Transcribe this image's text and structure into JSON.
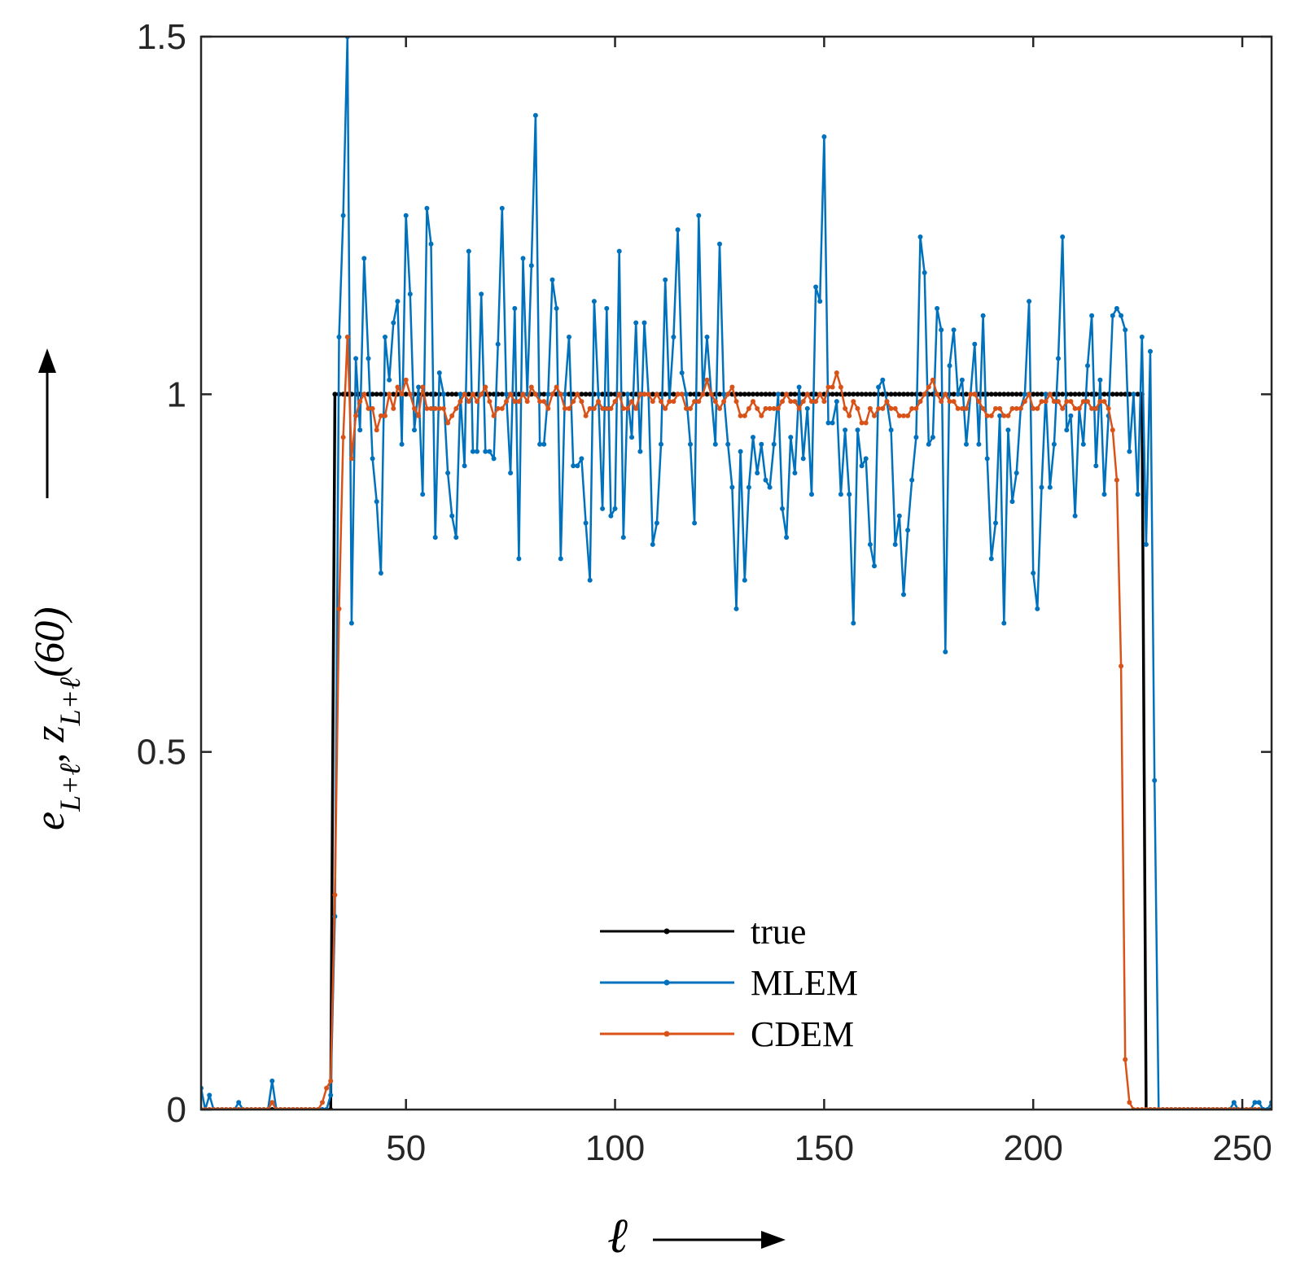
{
  "chart_data": {
    "type": "line",
    "xlabel": "ℓ",
    "ylabel": "e_{L+ℓ}, z_{L+ℓ}(60)",
    "xlim": [
      1,
      257
    ],
    "ylim": [
      0,
      1.5
    ],
    "xticks": [
      50,
      100,
      150,
      200,
      250
    ],
    "xtick_labels": [
      "50",
      "100",
      "150",
      "200",
      "250"
    ],
    "yticks": [
      0,
      0.5,
      1,
      1.5
    ],
    "ytick_labels": [
      "0",
      "0.5",
      "1",
      "1.5"
    ],
    "legend_position": "lower-center",
    "grid": false,
    "colors": {
      "true": "#000000",
      "MLEM": "#0072BD",
      "CDEM": "#D95319",
      "axes": "#262626"
    },
    "series": [
      {
        "name": "true",
        "x_start": 1,
        "values": [
          0,
          0,
          0,
          0,
          0,
          0,
          0,
          0,
          0,
          0,
          0,
          0,
          0,
          0,
          0,
          0,
          0,
          0,
          0,
          0,
          0,
          0,
          0,
          0,
          0,
          0,
          0,
          0,
          0,
          0,
          0,
          0,
          1,
          1,
          1,
          1,
          1,
          1,
          1,
          1,
          1,
          1,
          1,
          1,
          1,
          1,
          1,
          1,
          1,
          1,
          1,
          1,
          1,
          1,
          1,
          1,
          1,
          1,
          1,
          1,
          1,
          1,
          1,
          1,
          1,
          1,
          1,
          1,
          1,
          1,
          1,
          1,
          1,
          1,
          1,
          1,
          1,
          1,
          1,
          1,
          1,
          1,
          1,
          1,
          1,
          1,
          1,
          1,
          1,
          1,
          1,
          1,
          1,
          1,
          1,
          1,
          1,
          1,
          1,
          1,
          1,
          1,
          1,
          1,
          1,
          1,
          1,
          1,
          1,
          1,
          1,
          1,
          1,
          1,
          1,
          1,
          1,
          1,
          1,
          1,
          1,
          1,
          1,
          1,
          1,
          1,
          1,
          1,
          1,
          1,
          1,
          1,
          1,
          1,
          1,
          1,
          1,
          1,
          1,
          1,
          1,
          1,
          1,
          1,
          1,
          1,
          1,
          1,
          1,
          1,
          1,
          1,
          1,
          1,
          1,
          1,
          1,
          1,
          1,
          1,
          1,
          1,
          1,
          1,
          1,
          1,
          1,
          1,
          1,
          1,
          1,
          1,
          1,
          1,
          1,
          1,
          1,
          1,
          1,
          1,
          1,
          1,
          1,
          1,
          1,
          1,
          1,
          1,
          1,
          1,
          1,
          1,
          1,
          1,
          1,
          1,
          1,
          1,
          1,
          1,
          1,
          1,
          1,
          1,
          1,
          1,
          1,
          1,
          1,
          1,
          1,
          1,
          1,
          1,
          1,
          1,
          1,
          1,
          1,
          1,
          1,
          1,
          1,
          1,
          1,
          1,
          0,
          0,
          0,
          0,
          0,
          0,
          0,
          0,
          0,
          0,
          0,
          0,
          0,
          0,
          0,
          0,
          0,
          0,
          0,
          0,
          0,
          0,
          0,
          0,
          0,
          0,
          0,
          0,
          0,
          0,
          0,
          0,
          0
        ]
      },
      {
        "name": "MLEM",
        "x_start": 1,
        "values": [
          0.03,
          0,
          0.02,
          0,
          0,
          0,
          0,
          0,
          0,
          0.01,
          0,
          0,
          0,
          0,
          0,
          0,
          0,
          0.04,
          0,
          0,
          0,
          0,
          0,
          0,
          0,
          0,
          0,
          0,
          0,
          0,
          0,
          0.02,
          0.27,
          1.08,
          1.25,
          1.5,
          0.68,
          1.05,
          0.95,
          1.19,
          1.05,
          0.91,
          0.85,
          0.75,
          1.08,
          1.02,
          1.1,
          1.13,
          0.93,
          1.25,
          1.14,
          0.95,
          1.01,
          0.86,
          1.26,
          1.21,
          0.8,
          1.03,
          1.0,
          0.89,
          0.83,
          0.8,
          1.0,
          0.9,
          1.2,
          0.92,
          0.92,
          1.14,
          0.92,
          0.92,
          0.91,
          1.07,
          1.26,
          1.0,
          0.89,
          1.12,
          0.77,
          1.19,
          1.0,
          1.18,
          1.39,
          0.93,
          0.93,
          1.0,
          1.16,
          1.12,
          0.77,
          1.0,
          1.08,
          0.9,
          0.9,
          0.91,
          0.82,
          0.74,
          1.13,
          1.0,
          0.84,
          1.12,
          0.83,
          0.84,
          1.2,
          0.8,
          1.0,
          0.94,
          1.1,
          0.92,
          1.1,
          1.0,
          0.79,
          0.82,
          0.93,
          1.16,
          0.99,
          1.08,
          1.23,
          1.03,
          1.0,
          0.93,
          0.82,
          1.25,
          1.0,
          1.08,
          1.0,
          0.93,
          1.21,
          1.0,
          0.93,
          0.87,
          0.7,
          0.92,
          0.74,
          0.87,
          0.94,
          0.89,
          0.93,
          0.88,
          0.87,
          0.93,
          1.0,
          0.84,
          0.8,
          0.94,
          0.89,
          1.01,
          0.91,
          0.98,
          0.86,
          1.15,
          1.13,
          1.36,
          0.96,
          0.96,
          0.99,
          0.86,
          0.95,
          0.86,
          0.68,
          0.95,
          0.9,
          0.91,
          0.79,
          0.76,
          1.01,
          1.02,
          0.99,
          0.95,
          0.79,
          0.83,
          0.72,
          0.81,
          0.88,
          0.94,
          1.22,
          1.17,
          0.93,
          0.94,
          1.12,
          1.09,
          0.64,
          1.04,
          1.09,
          1.0,
          1.02,
          0.93,
          1.0,
          1.07,
          0.93,
          1.11,
          0.91,
          0.77,
          0.82,
          0.97,
          0.68,
          0.95,
          0.85,
          0.89,
          0.98,
          1.0,
          1.13,
          0.75,
          0.7,
          0.87,
          1.0,
          0.87,
          0.93,
          1.05,
          1.22,
          0.95,
          0.97,
          0.83,
          0.98,
          0.93,
          1.04,
          1.11,
          0.9,
          1.02,
          0.86,
          0.97,
          1.11,
          1.12,
          1.11,
          1.09,
          0.92,
          1.0,
          0.86,
          1.08,
          0.79,
          1.06,
          0.46,
          0,
          0,
          0,
          0,
          0,
          0,
          0,
          0,
          0,
          0,
          0,
          0,
          0,
          0,
          0,
          0,
          0,
          0,
          0.01,
          0,
          0,
          0,
          0,
          0.01,
          0.01,
          0,
          0,
          0.01,
          0.03,
          0,
          0,
          0,
          0,
          0.02,
          0,
          0
        ]
      },
      {
        "name": "CDEM",
        "x_start": 1,
        "values": [
          0,
          0,
          0,
          0,
          0,
          0,
          0,
          0,
          0,
          0,
          0,
          0,
          0,
          0,
          0,
          0,
          0,
          0.01,
          0,
          0,
          0,
          0,
          0,
          0,
          0,
          0,
          0,
          0,
          0,
          0.01,
          0.03,
          0.04,
          0.3,
          0.7,
          0.94,
          1.08,
          0.91,
          0.97,
          0.99,
          1.0,
          0.98,
          0.98,
          0.95,
          0.97,
          0.97,
          1.0,
          0.98,
          1.01,
          1.0,
          1.02,
          1.0,
          0.98,
          0.97,
          1.01,
          0.98,
          0.98,
          0.98,
          0.98,
          0.98,
          0.96,
          0.97,
          0.98,
          0.99,
          1.0,
          0.99,
          1.0,
          0.99,
          1.0,
          1.01,
          0.99,
          0.97,
          0.98,
          0.98,
          0.99,
          1.0,
          0.99,
          0.99,
          1.0,
          0.99,
          1.01,
          1.0,
          0.99,
          0.99,
          0.98,
          1.0,
          1.01,
          1.0,
          0.98,
          0.98,
          0.99,
          1.0,
          0.99,
          0.97,
          0.98,
          0.98,
          0.99,
          0.98,
          0.98,
          0.98,
          0.99,
          1.0,
          0.98,
          0.98,
          0.99,
          0.98,
          1.0,
          1.0,
          1.0,
          0.99,
          1.0,
          0.99,
          0.98,
          0.99,
          0.99,
          1.0,
          1.0,
          0.98,
          0.98,
          0.99,
          0.99,
          1.0,
          1.02,
          1.0,
          0.99,
          0.98,
          0.99,
          1.0,
          1.01,
          0.99,
          0.97,
          0.97,
          0.98,
          0.99,
          0.98,
          0.97,
          0.98,
          0.98,
          0.98,
          0.98,
          0.99,
          1.0,
          0.99,
          0.99,
          0.98,
          0.99,
          1.0,
          0.99,
          0.99,
          1.0,
          0.99,
          1.01,
          1.01,
          1.03,
          1.01,
          0.98,
          0.97,
          0.99,
          0.98,
          0.96,
          0.96,
          0.98,
          0.97,
          0.98,
          0.98,
          0.99,
          0.98,
          0.98,
          0.97,
          0.97,
          0.97,
          0.98,
          0.98,
          0.99,
          1.0,
          1.01,
          1.02,
          1.0,
          0.99,
          1.0,
          0.99,
          0.99,
          0.98,
          0.98,
          0.98,
          1.0,
          1.0,
          0.99,
          0.98,
          0.97,
          0.97,
          0.98,
          0.98,
          0.97,
          0.97,
          0.98,
          0.98,
          0.98,
          0.99,
          1.0,
          0.98,
          0.98,
          0.99,
          0.99,
          1.0,
          0.99,
          0.99,
          0.98,
          0.99,
          0.99,
          0.98,
          0.98,
          0.99,
          0.99,
          0.98,
          0.98,
          0.99,
          0.99,
          0.98,
          0.95,
          0.88,
          0.62,
          0.07,
          0.01,
          0,
          0,
          0,
          0,
          0,
          0,
          0,
          0,
          0,
          0,
          0,
          0,
          0,
          0,
          0,
          0,
          0,
          0,
          0,
          0,
          0,
          0,
          0,
          0,
          0,
          0,
          0,
          0,
          0,
          0,
          0
        ]
      }
    ]
  }
}
